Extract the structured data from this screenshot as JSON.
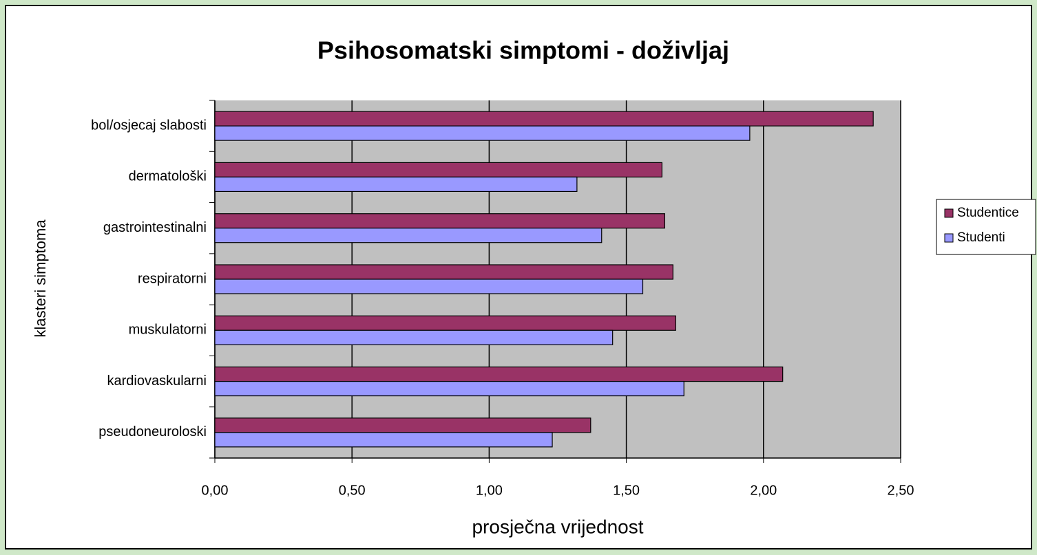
{
  "chart_data": {
    "type": "barh",
    "title": "Psihosomatski simptomi - doživljaj",
    "xlabel": "prosječna vrijednost",
    "ylabel": "klasteri simptoma",
    "categories": [
      "bol/osjecaj slabosti",
      "dermatološki",
      "gastrointestinalni",
      "respiratorni",
      "muskulatorni",
      "kardiovaskularni",
      "pseudoneuroloski"
    ],
    "series": [
      {
        "name": "Studentice",
        "color": "#993366",
        "values": [
          2.4,
          1.63,
          1.64,
          1.67,
          1.68,
          2.07,
          1.37
        ]
      },
      {
        "name": "Studenti",
        "color": "#9999ff",
        "values": [
          1.95,
          1.32,
          1.41,
          1.56,
          1.45,
          1.71,
          1.23
        ]
      }
    ],
    "xlim": [
      0,
      2.5
    ],
    "xticks": [
      {
        "value": 0,
        "label": "0,00"
      },
      {
        "value": 0.5,
        "label": "0,50"
      },
      {
        "value": 1,
        "label": "1,00"
      },
      {
        "value": 1.5,
        "label": "1,50"
      },
      {
        "value": 2,
        "label": "2,00"
      },
      {
        "value": 2.5,
        "label": "2,50"
      }
    ],
    "grid": true,
    "legend": "right"
  }
}
